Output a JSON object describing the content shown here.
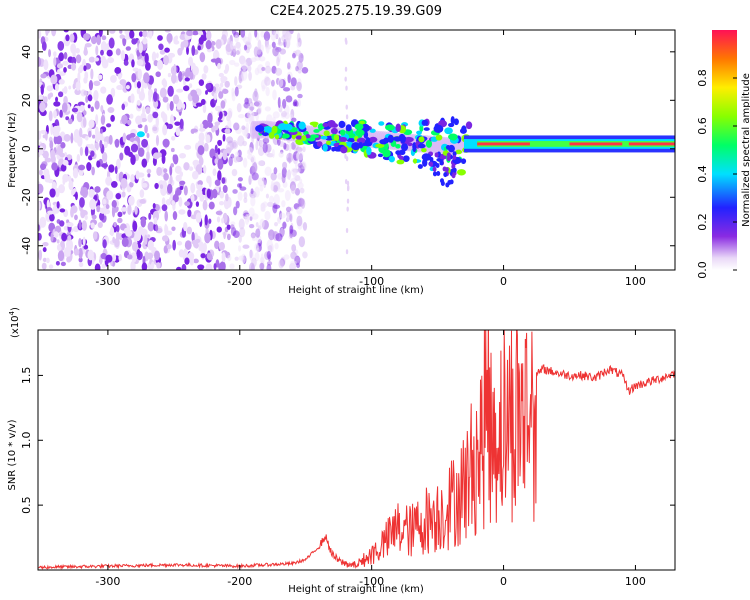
{
  "figure": {
    "title": "C2E4.2025.275.19.39.G09"
  },
  "chart_data": [
    {
      "type": "heatmap",
      "title": "C2E4.2025.275.19.39.G09",
      "xlabel": "Height of straight line (km)",
      "ylabel": "Frequency (Hz)",
      "xlim": [
        -353,
        130
      ],
      "ylim": [
        -50,
        49
      ],
      "x_ticks": [
        -300,
        -200,
        -100,
        0,
        100
      ],
      "x_tick_labels": [
        "-300",
        "-200",
        "-100",
        "0",
        "100"
      ],
      "y_ticks": [
        -40,
        -20,
        0,
        20,
        40
      ],
      "y_tick_labels": [
        "-40",
        "-20",
        "0",
        "20",
        "40"
      ],
      "noise_region_km": [
        -353,
        -155
      ],
      "ridge_points": [
        {
          "x": -275,
          "y": 6
        },
        {
          "x": -180,
          "y": 8
        },
        {
          "x": -150,
          "y": 6
        },
        {
          "x": -120,
          "y": 5
        },
        {
          "x": -100,
          "y": 4
        },
        {
          "x": -80,
          "y": 3
        },
        {
          "x": -60,
          "y": 2
        },
        {
          "x": -40,
          "y": 1
        },
        {
          "x": -30,
          "y": 2
        },
        {
          "x": 0,
          "y": 2
        },
        {
          "x": 40,
          "y": 3
        },
        {
          "x": 80,
          "y": 3
        },
        {
          "x": 130,
          "y": 3
        }
      ],
      "colorbar": {
        "label": "Normalized spectral amplitude",
        "range": [
          0,
          1
        ],
        "ticks": [
          0.0,
          0.2,
          0.4,
          0.6,
          0.8
        ],
        "tick_labels": [
          "0.0",
          "0.2",
          "0.4",
          "0.6",
          "0.8"
        ]
      }
    },
    {
      "type": "line",
      "xlabel": "Height of straight line (km)",
      "ylabel": "SNR (10 * v/v)",
      "scale_label": "(x10",
      "scale_exponent": "4",
      "scale_close": ")",
      "xlim": [
        -353,
        130
      ],
      "ylim": [
        0,
        1.85
      ],
      "x_ticks": [
        -300,
        -200,
        -100,
        0,
        100
      ],
      "x_tick_labels": [
        "-300",
        "-200",
        "-100",
        "0",
        "100"
      ],
      "y_ticks": [
        0.5,
        1.0,
        1.5
      ],
      "y_tick_labels": [
        "0.5",
        "1.0",
        "1.5"
      ],
      "series": [
        {
          "name": "SNR",
          "color": "#ee3333",
          "x": [
            -353,
            -300,
            -250,
            -200,
            -160,
            -150,
            -140,
            -135,
            -130,
            -125,
            -120,
            -115,
            -110,
            -100,
            -90,
            -80,
            -70,
            -60,
            -50,
            -40,
            -30,
            -25,
            -20,
            -15,
            -12,
            -10,
            -5,
            0,
            10,
            20,
            30,
            40,
            50,
            60,
            70,
            80,
            90,
            95,
            100,
            110,
            120,
            130
          ],
          "values": [
            0.02,
            0.03,
            0.04,
            0.03,
            0.05,
            0.08,
            0.18,
            0.26,
            0.12,
            0.07,
            0.05,
            0.04,
            0.06,
            0.14,
            0.25,
            0.38,
            0.35,
            0.45,
            0.5,
            0.6,
            0.75,
            0.9,
            1.05,
            1.2,
            1.75,
            1.2,
            1.3,
            1.35,
            1.42,
            1.45,
            1.55,
            1.52,
            1.5,
            1.5,
            1.48,
            1.55,
            1.5,
            1.38,
            1.42,
            1.45,
            1.48,
            1.52
          ]
        }
      ]
    }
  ]
}
